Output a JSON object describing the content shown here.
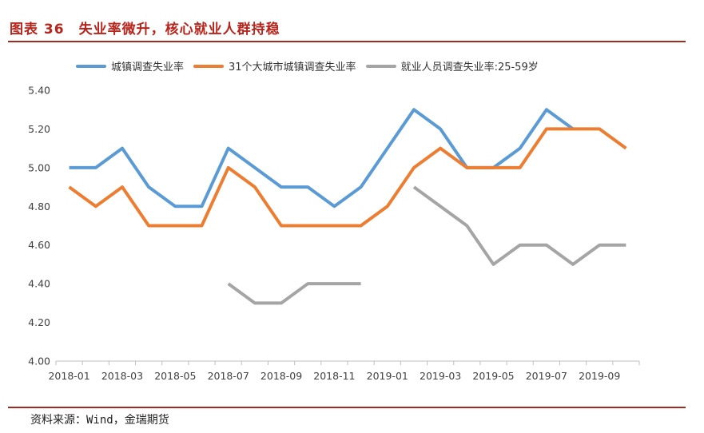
{
  "figure": {
    "title": "图表 36　失业率微升，核心就业人群持稳",
    "source": "资料来源：Wind，金瑞期货"
  },
  "chart_data": {
    "type": "line",
    "title": "",
    "xlabel": "",
    "ylabel": "",
    "ylim": [
      4.0,
      5.4
    ],
    "yticks": [
      "4.00",
      "4.20",
      "4.40",
      "4.60",
      "4.80",
      "5.00",
      "5.20",
      "5.40"
    ],
    "ytick_values": [
      4.0,
      4.2,
      4.4,
      4.6,
      4.8,
      5.0,
      5.2,
      5.4
    ],
    "categories": [
      "2018-01",
      "2018-02",
      "2018-03",
      "2018-04",
      "2018-05",
      "2018-06",
      "2018-07",
      "2018-08",
      "2018-09",
      "2018-10",
      "2018-11",
      "2018-12",
      "2019-01",
      "2019-02",
      "2019-03",
      "2019-04",
      "2019-05",
      "2019-06",
      "2019-07",
      "2019-08",
      "2019-09",
      "2019-10"
    ],
    "xtick_labels": [
      "2018-01",
      "",
      "2018-03",
      "",
      "2018-05",
      "",
      "2018-07",
      "",
      "2018-09",
      "",
      "2018-11",
      "",
      "2019-01",
      "",
      "2019-03",
      "",
      "2019-05",
      "",
      "2019-07",
      "",
      "2019-09",
      ""
    ],
    "grid": false,
    "legend_position": "top",
    "series": [
      {
        "name": "城镇调查失业率",
        "color": "#5b9bd5",
        "values": [
          5.0,
          5.0,
          5.1,
          4.9,
          4.8,
          4.8,
          5.1,
          5.0,
          4.9,
          4.9,
          4.8,
          4.9,
          5.1,
          5.3,
          5.2,
          5.0,
          5.0,
          5.1,
          5.3,
          5.2,
          null,
          null
        ]
      },
      {
        "name": "31个大城市城镇调查失业率",
        "color": "#ed7d31",
        "values": [
          4.9,
          4.8,
          4.9,
          4.7,
          4.7,
          4.7,
          5.0,
          4.9,
          4.7,
          4.7,
          4.7,
          4.7,
          4.8,
          5.0,
          5.1,
          5.0,
          5.0,
          5.0,
          5.2,
          5.2,
          5.2,
          5.1
        ]
      },
      {
        "name": "就业人员调查失业率:25-59岁",
        "color": "#a5a5a5",
        "values": [
          null,
          null,
          null,
          null,
          null,
          null,
          4.4,
          4.3,
          4.3,
          4.4,
          4.4,
          4.4,
          null,
          4.9,
          4.8,
          4.7,
          4.5,
          4.6,
          4.6,
          4.5,
          4.6,
          4.6
        ]
      }
    ]
  }
}
